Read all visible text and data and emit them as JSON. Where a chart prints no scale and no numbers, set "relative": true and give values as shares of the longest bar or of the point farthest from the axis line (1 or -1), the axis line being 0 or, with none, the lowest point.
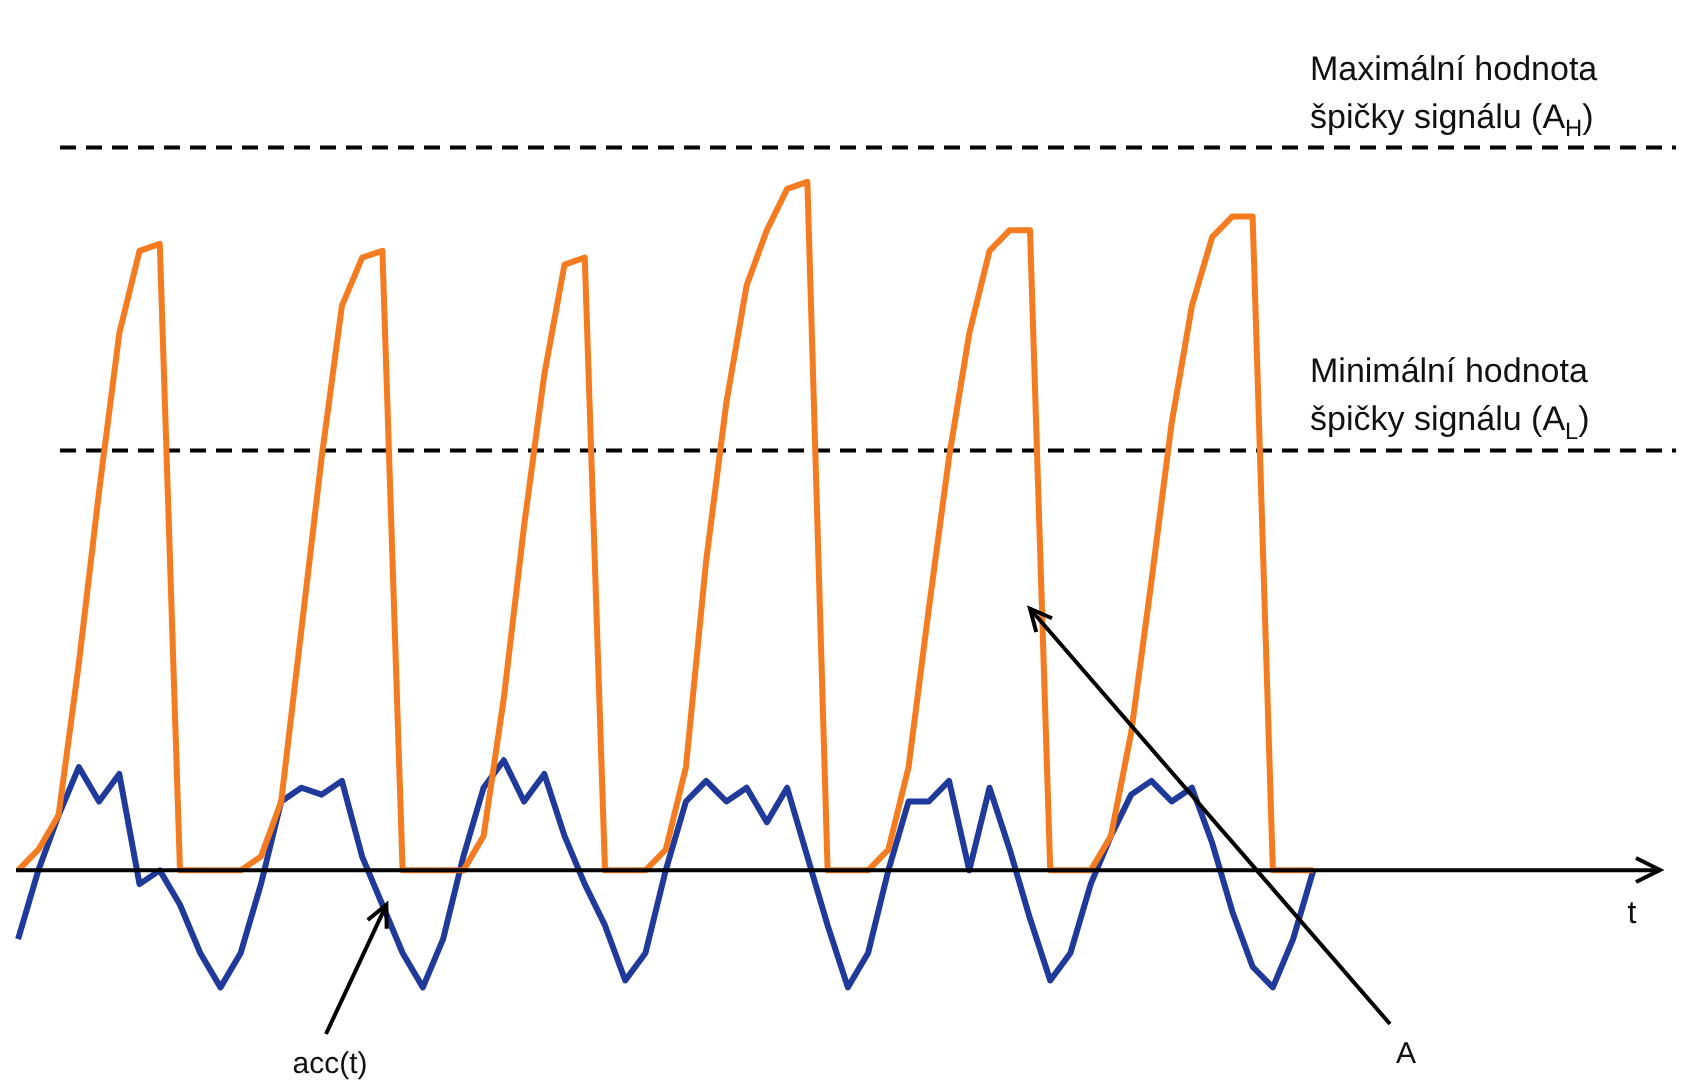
{
  "chart_data": {
    "type": "line",
    "relative": true,
    "categories": [
      null,
      null,
      null,
      null,
      null,
      null,
      null,
      null,
      null,
      null,
      null,
      null,
      null,
      null,
      null,
      null,
      null,
      null,
      null,
      null,
      null,
      null,
      null,
      null,
      null,
      null,
      null,
      null,
      null,
      null,
      null,
      null,
      null,
      null,
      null,
      null,
      null,
      null,
      null,
      null,
      null,
      null,
      null,
      null,
      null,
      null,
      null,
      null,
      null,
      null,
      null,
      null,
      null,
      null,
      null,
      null,
      null,
      null,
      null,
      null,
      null,
      null,
      null,
      null,
      null
    ],
    "series": [
      {
        "color": "#f47b20",
        "values": [
          0,
          0.03,
          0.08,
          0.3,
          0.55,
          0.78,
          0.9,
          0.91,
          0,
          0,
          0,
          0,
          0.02,
          0.1,
          0.35,
          0.6,
          0.82,
          0.89,
          0.9,
          0,
          0,
          0,
          0,
          0.05,
          0.25,
          0.5,
          0.72,
          0.88,
          0.89,
          0,
          0,
          0,
          0.03,
          0.15,
          0.45,
          0.68,
          0.85,
          0.93,
          0.99,
          1.0,
          0,
          0,
          0,
          0.03,
          0.15,
          0.38,
          0.6,
          0.78,
          0.9,
          0.93,
          0.93,
          0,
          0,
          0,
          0.05,
          0.2,
          0.42,
          0.65,
          0.82,
          0.92,
          0.95,
          0.95,
          0,
          0,
          0
        ]
      },
      {
        "color": "#1f3a9a",
        "values": [
          -0.1,
          0,
          0.08,
          0.15,
          0.1,
          0.14,
          -0.02,
          0,
          -0.05,
          -0.12,
          -0.17,
          -0.12,
          -0.02,
          0.1,
          0.12,
          0.11,
          0.13,
          0.02,
          -0.05,
          -0.12,
          -0.17,
          -0.1,
          0.02,
          0.12,
          0.16,
          0.1,
          0.14,
          0.05,
          -0.02,
          -0.08,
          -0.16,
          -0.12,
          0,
          0.1,
          0.13,
          0.1,
          0.12,
          0.07,
          0.12,
          0.02,
          -0.08,
          -0.17,
          -0.12,
          0,
          0.1,
          0.1,
          0.13,
          0,
          0.12,
          0.03,
          -0.07,
          -0.16,
          -0.12,
          -0.02,
          0.05,
          0.11,
          0.13,
          0.1,
          0.12,
          0.04,
          -0.06,
          -0.14,
          -0.17,
          -0.1,
          0
        ]
      }
    ],
    "ref_lines": [
      {
        "axis": "y",
        "value": 1.05,
        "label": "Maximální hodnota špičky signálu (A$_{H}$)",
        "line_style": "dashed",
        "color": "#000000"
      },
      {
        "axis": "y",
        "value": 0.61,
        "label": "Minimální hodnota špičky signálu (A$_{L}$)",
        "line_style": "dashed",
        "color": "#000000"
      }
    ],
    "annotations": [
      "t",
      "acc(t)",
      "A"
    ],
    "legend": false,
    "marker": "none",
    "line_style": "solid"
  }
}
